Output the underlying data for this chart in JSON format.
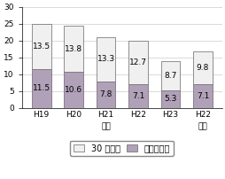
{
  "categories": [
    "H19",
    "H20",
    "H21",
    "H22",
    "H23",
    "H22"
  ],
  "bottom_values": [
    11.5,
    10.6,
    7.8,
    7.1,
    5.3,
    7.1
  ],
  "top_values": [
    13.5,
    13.8,
    13.3,
    12.7,
    8.7,
    9.8
  ],
  "bottom_color": "#b0a0b8",
  "top_color": "#f0f0f0",
  "bar_edge_color": "#666666",
  "ylim": [
    0,
    30
  ],
  "yticks": [
    0,
    5,
    10,
    15,
    20,
    25,
    30
  ],
  "legend_labels": [
    "30 分未満",
    "全くしない"
  ],
  "group_label_kochi": "高知",
  "group_label_zenkoku": "全国",
  "group_kochi_indices": [
    0,
    1,
    2,
    3,
    4
  ],
  "group_zenkoku_indices": [
    5
  ],
  "bar_width": 0.6,
  "label_fontsize": 6.5,
  "tick_fontsize": 6.5,
  "legend_fontsize": 7.0
}
